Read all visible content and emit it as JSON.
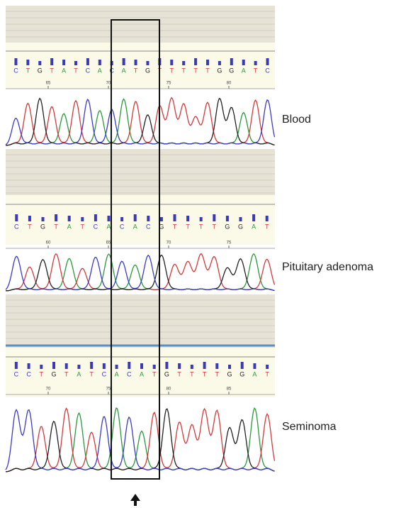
{
  "panels": [
    {
      "label": "Blood",
      "bases": [
        "C",
        "T",
        "G",
        "T",
        "A",
        "T",
        "C",
        "A",
        "C",
        "A",
        "T",
        "G",
        "T",
        "T",
        "T",
        "T",
        "T",
        "G",
        "G",
        "A",
        "T",
        "C"
      ],
      "positions": [
        "65",
        "70",
        "75",
        "80"
      ]
    },
    {
      "label": "Pituitary adenoma",
      "bases": [
        "C",
        "T",
        "G",
        "T",
        "A",
        "T",
        "C",
        "A",
        "C",
        "A",
        "C",
        "G",
        "T",
        "T",
        "T",
        "T",
        "G",
        "G",
        "A",
        "T"
      ],
      "positions": [
        "60",
        "65",
        "70",
        "75"
      ]
    },
    {
      "label": "Seminoma",
      "bases": [
        "C",
        "C",
        "T",
        "G",
        "T",
        "A",
        "T",
        "C",
        "A",
        "C",
        "A",
        "T",
        "G",
        "T",
        "T",
        "T",
        "T",
        "G",
        "G",
        "A",
        "T"
      ],
      "positions": [
        "70",
        "75",
        "80",
        "85"
      ]
    }
  ]
}
